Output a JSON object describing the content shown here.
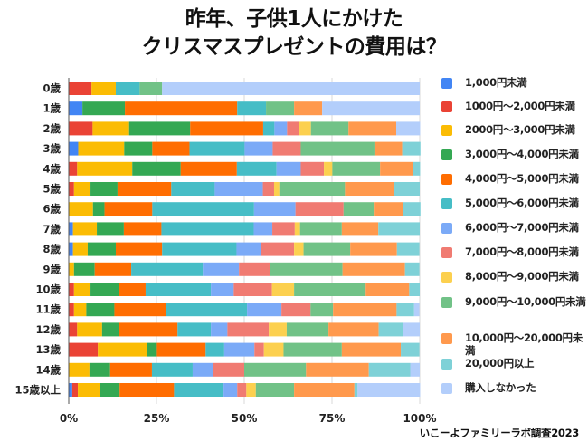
{
  "title_lines": [
    "昨年、子供1人にかけた",
    "クリスマスプレゼントの費用は？"
  ],
  "source": "いこーよファミリーラボ調査2023",
  "chart_data": {
    "type": "bar",
    "orientation": "horizontal",
    "stacked": "percent",
    "title": "昨年、子供1人にかけたクリスマスプレゼントの費用は？",
    "xlabel": "",
    "ylabel": "",
    "xlim": [
      0,
      100
    ],
    "x_ticks": [
      "0%",
      "25%",
      "50%",
      "75%",
      "100%"
    ],
    "grid": true,
    "legend_position": "right",
    "categories": [
      "0歳",
      "1歳",
      "2歳",
      "3歳",
      "4歳",
      "5歳",
      "6歳",
      "7歳",
      "8歳",
      "9歳",
      "10歳",
      "11歳",
      "12歳",
      "13歳",
      "14歳",
      "15歳以上"
    ],
    "series": [
      {
        "name": "1,000円未満",
        "color": "#4285f4",
        "values": [
          0,
          3.9,
          0,
          2.7,
          0,
          0,
          0,
          1.2,
          1.2,
          0,
          0,
          0,
          0,
          0,
          0,
          1.0
        ]
      },
      {
        "name": "1000円～2,000円未満",
        "color": "#ea4335",
        "values": [
          6.5,
          0,
          6.8,
          0,
          2.4,
          1.5,
          0,
          0,
          0,
          0,
          1.5,
          1.5,
          2.4,
          8.3,
          0,
          1.6
        ]
      },
      {
        "name": "2000円～3,000円未満",
        "color": "#fbbc04",
        "values": [
          6.9,
          0,
          10.4,
          13.1,
          15.7,
          4.7,
          6.9,
          6.8,
          4.2,
          1.5,
          4.7,
          3.5,
          7.1,
          13.9,
          5.9,
          6.3
        ]
      },
      {
        "name": "3,000円～4,000円未満",
        "color": "#34a853",
        "values": [
          0,
          12.1,
          17.4,
          8.0,
          13.8,
          7.7,
          3.3,
          7.7,
          8.0,
          5.9,
          8.0,
          8.0,
          4.7,
          2.9,
          5.9,
          5.6
        ]
      },
      {
        "name": "4,000円～5,000円未満",
        "color": "#ff6d01",
        "values": [
          0,
          32.0,
          20.8,
          10.6,
          16.0,
          15.3,
          13.6,
          10.7,
          13.2,
          10.4,
          7.7,
          14.8,
          16.8,
          13.9,
          11.9,
          15.5
        ]
      },
      {
        "name": "5,000円～6,000円未満",
        "color": "#46bdc6",
        "values": [
          6.8,
          8.2,
          3.2,
          15.7,
          11.3,
          12.4,
          29.0,
          26.3,
          21.2,
          20.4,
          18.6,
          23.0,
          9.5,
          5.3,
          11.6,
          14.1
        ]
      },
      {
        "name": "6,000円～7,000円未満",
        "color": "#7baaf7",
        "values": [
          0,
          0,
          3.6,
          8.0,
          6.9,
          13.7,
          11.8,
          5.3,
          6.9,
          10.3,
          6.5,
          9.8,
          4.7,
          8.6,
          5.8,
          3.9
        ]
      },
      {
        "name": "7,000円～8,000円未満",
        "color": "#f07b72",
        "values": [
          0,
          0,
          3.4,
          8.0,
          6.6,
          3.2,
          13.7,
          6.4,
          9.5,
          8.9,
          10.9,
          8.3,
          11.8,
          2.7,
          8.9,
          2.6
        ]
      },
      {
        "name": "8,000円～9,000円未満",
        "color": "#fcd04f",
        "values": [
          0,
          0,
          3.4,
          0,
          2.4,
          1.5,
          0,
          1.5,
          2.7,
          0,
          6.3,
          0,
          5.1,
          5.6,
          0,
          2.7
        ]
      },
      {
        "name": "9,000円～10,000円未満",
        "color": "#71c287",
        "values": [
          6.4,
          8.0,
          10.7,
          21.0,
          13.6,
          18.7,
          8.6,
          11.9,
          13.3,
          20.6,
          20.4,
          6.4,
          11.9,
          16.6,
          17.6,
          10.9
        ]
      },
      {
        "name": "10,000円～20,000円未満",
        "color": "#ff994d",
        "values": [
          0,
          8.0,
          13.6,
          7.9,
          9.3,
          13.9,
          8.3,
          10.4,
          13.3,
          17.8,
          12.4,
          18.1,
          14.3,
          16.8,
          17.9,
          17.2
        ]
      },
      {
        "name": "20,000円以上",
        "color": "#7ed1d7",
        "values": [
          0,
          0,
          0,
          5.2,
          2.1,
          7.4,
          5.0,
          11.8,
          6.4,
          4.1,
          3.0,
          5.0,
          7.0,
          5.3,
          11.8,
          0.9
        ]
      },
      {
        "name": "購入しなかった",
        "color": "#b3cefb",
        "values": [
          73.4,
          27.8,
          6.8,
          0,
          0,
          0,
          0,
          0,
          0,
          0,
          0,
          1.5,
          4.7,
          0,
          2.7,
          17.8
        ]
      }
    ]
  }
}
